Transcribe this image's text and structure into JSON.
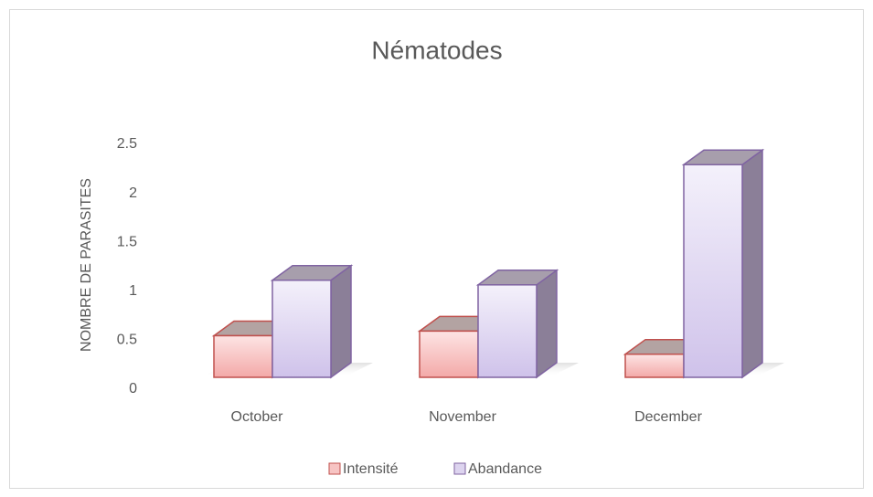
{
  "chart_data": {
    "type": "bar3d",
    "title": "Nématodes",
    "y_label": "NOMBRE DE PARASITES",
    "categories": [
      "October",
      "November",
      "December"
    ],
    "series": [
      {
        "name": "Intensité",
        "color": "#f7c4c3",
        "values": [
          0.45,
          0.5,
          0.25
        ]
      },
      {
        "name": "Abandance",
        "color": "#ddd4ef",
        "values": [
          1.05,
          1.0,
          2.3
        ]
      }
    ],
    "ylim": [
      0,
      2.5
    ],
    "yticks": [
      0,
      0.5,
      1,
      1.5,
      2,
      2.5
    ],
    "legend": "bottom"
  }
}
